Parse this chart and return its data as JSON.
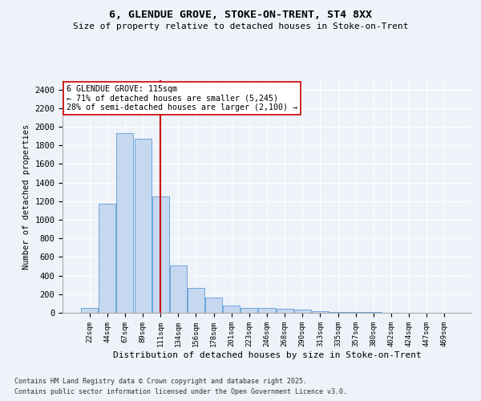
{
  "title1": "6, GLENDUE GROVE, STOKE-ON-TRENT, ST4 8XX",
  "title2": "Size of property relative to detached houses in Stoke-on-Trent",
  "xlabel": "Distribution of detached houses by size in Stoke-on-Trent",
  "ylabel": "Number of detached properties",
  "categories": [
    "22sqm",
    "44sqm",
    "67sqm",
    "89sqm",
    "111sqm",
    "134sqm",
    "156sqm",
    "178sqm",
    "201sqm",
    "223sqm",
    "246sqm",
    "268sqm",
    "290sqm",
    "313sqm",
    "335sqm",
    "357sqm",
    "380sqm",
    "402sqm",
    "424sqm",
    "447sqm",
    "469sqm"
  ],
  "values": [
    50,
    1170,
    1930,
    1870,
    1250,
    510,
    270,
    160,
    80,
    55,
    55,
    40,
    35,
    20,
    10,
    5,
    5,
    3,
    2,
    1,
    1
  ],
  "bar_color": "#c5d8f0",
  "bar_edge_color": "#5b9bd5",
  "vline_index": 4,
  "vline_color": "#cc0000",
  "annotation_line1": "6 GLENDUE GROVE: 115sqm",
  "annotation_line2": "← 71% of detached houses are smaller (5,245)",
  "annotation_line3": "28% of semi-detached houses are larger (2,100) →",
  "annotation_box_color": "#ffffff",
  "annotation_box_edge_color": "#cc0000",
  "background_color": "#eef2f9",
  "grid_color": "#ffffff",
  "ylim": [
    0,
    2500
  ],
  "yticks": [
    0,
    200,
    400,
    600,
    800,
    1000,
    1200,
    1400,
    1600,
    1800,
    2000,
    2200,
    2400
  ],
  "footer1": "Contains HM Land Registry data © Crown copyright and database right 2025.",
  "footer2": "Contains public sector information licensed under the Open Government Licence v3.0."
}
